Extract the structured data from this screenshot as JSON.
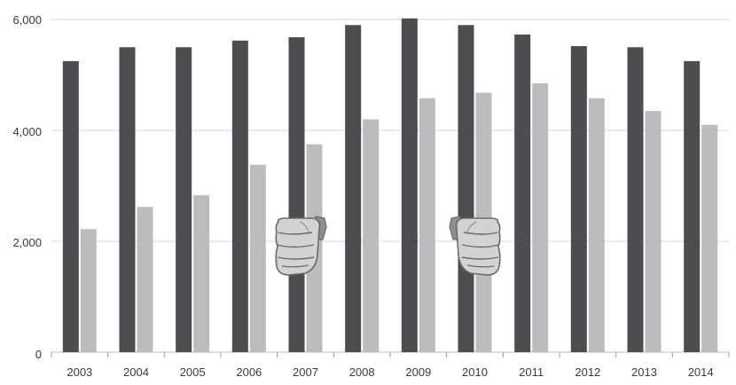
{
  "chart_data": {
    "type": "bar",
    "categories": [
      "2003",
      "2004",
      "2005",
      "2006",
      "2007",
      "2008",
      "2009",
      "2010",
      "2011",
      "2012",
      "2013",
      "2014"
    ],
    "series": [
      {
        "values": [
          5250,
          5500,
          5500,
          5620,
          5680,
          5900,
          6020,
          5900,
          5730,
          5520,
          5500,
          5250
        ]
      },
      {
        "values": [
          2220,
          2620,
          2830,
          3380,
          3750,
          4200,
          4580,
          4680,
          4850,
          4580,
          4350,
          4100
        ]
      }
    ],
    "title": "",
    "xlabel": "",
    "ylabel": "",
    "ylim": [
      0,
      6000
    ],
    "yticks": [
      "0",
      "2,000",
      "4,000",
      "6,000"
    ],
    "grid": true,
    "legend": "none",
    "colors": {
      "series_1": "#4d4d4f",
      "series_2": "#bcbcbc",
      "fist_fill": "#d3d3d3",
      "fist_cuff": "#8e8e8e"
    },
    "annotations": [
      {
        "icon": "clenched-fist-icon",
        "near_category": "2006"
      },
      {
        "icon": "clenched-fist-icon",
        "near_category": "2009"
      }
    ]
  }
}
